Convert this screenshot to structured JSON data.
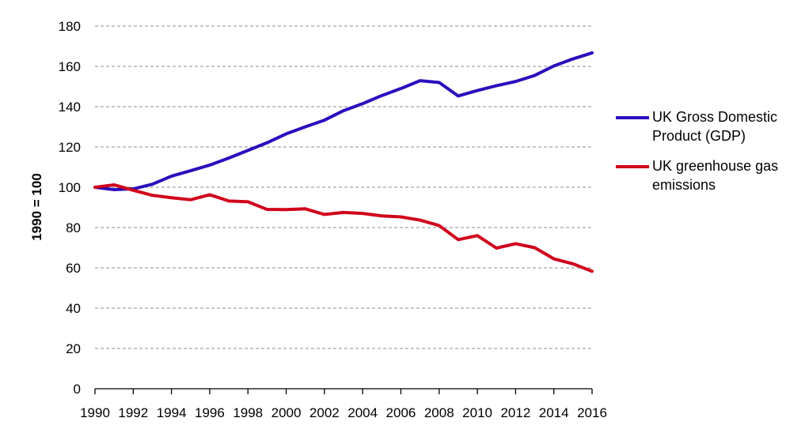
{
  "chart_data": {
    "type": "line",
    "ylabel": "1990 = 100",
    "ylim": [
      0,
      180
    ],
    "yticks": [
      0,
      20,
      40,
      60,
      80,
      100,
      120,
      140,
      160,
      180
    ],
    "xlim": [
      1990,
      2016
    ],
    "xticks": [
      1990,
      1992,
      1994,
      1996,
      1998,
      2000,
      2002,
      2004,
      2006,
      2008,
      2010,
      2012,
      2014,
      2016
    ],
    "grid": true,
    "legend_position": "right",
    "x": [
      1990,
      1991,
      1992,
      1993,
      1994,
      1995,
      1996,
      1997,
      1998,
      1999,
      2000,
      2001,
      2002,
      2003,
      2004,
      2005,
      2006,
      2007,
      2008,
      2009,
      2010,
      2011,
      2012,
      2013,
      2014,
      2015,
      2016
    ],
    "series": [
      {
        "name": "UK Gross Domestic Product (GDP)",
        "color": "#2a0fbe",
        "values": [
          100,
          98.8,
          99.2,
          101.5,
          105.5,
          108.2,
          111,
          114.5,
          118.3,
          122.1,
          126.5,
          130,
          133.3,
          138,
          141.5,
          145.5,
          149,
          152.9,
          152,
          145.3,
          148,
          150.4,
          152.5,
          155.5,
          160.2,
          163.7,
          166.7
        ]
      },
      {
        "name": "UK greenhouse gas emissions",
        "color": "#d0021b",
        "values": [
          100,
          101.2,
          98.5,
          96,
          94.8,
          93.8,
          96.3,
          93.2,
          92.8,
          89,
          88.9,
          89.3,
          86.5,
          87.5,
          87,
          85.8,
          85.3,
          83.7,
          81,
          74,
          76,
          69.8,
          72,
          70,
          64.5,
          62,
          58.3
        ]
      }
    ]
  }
}
